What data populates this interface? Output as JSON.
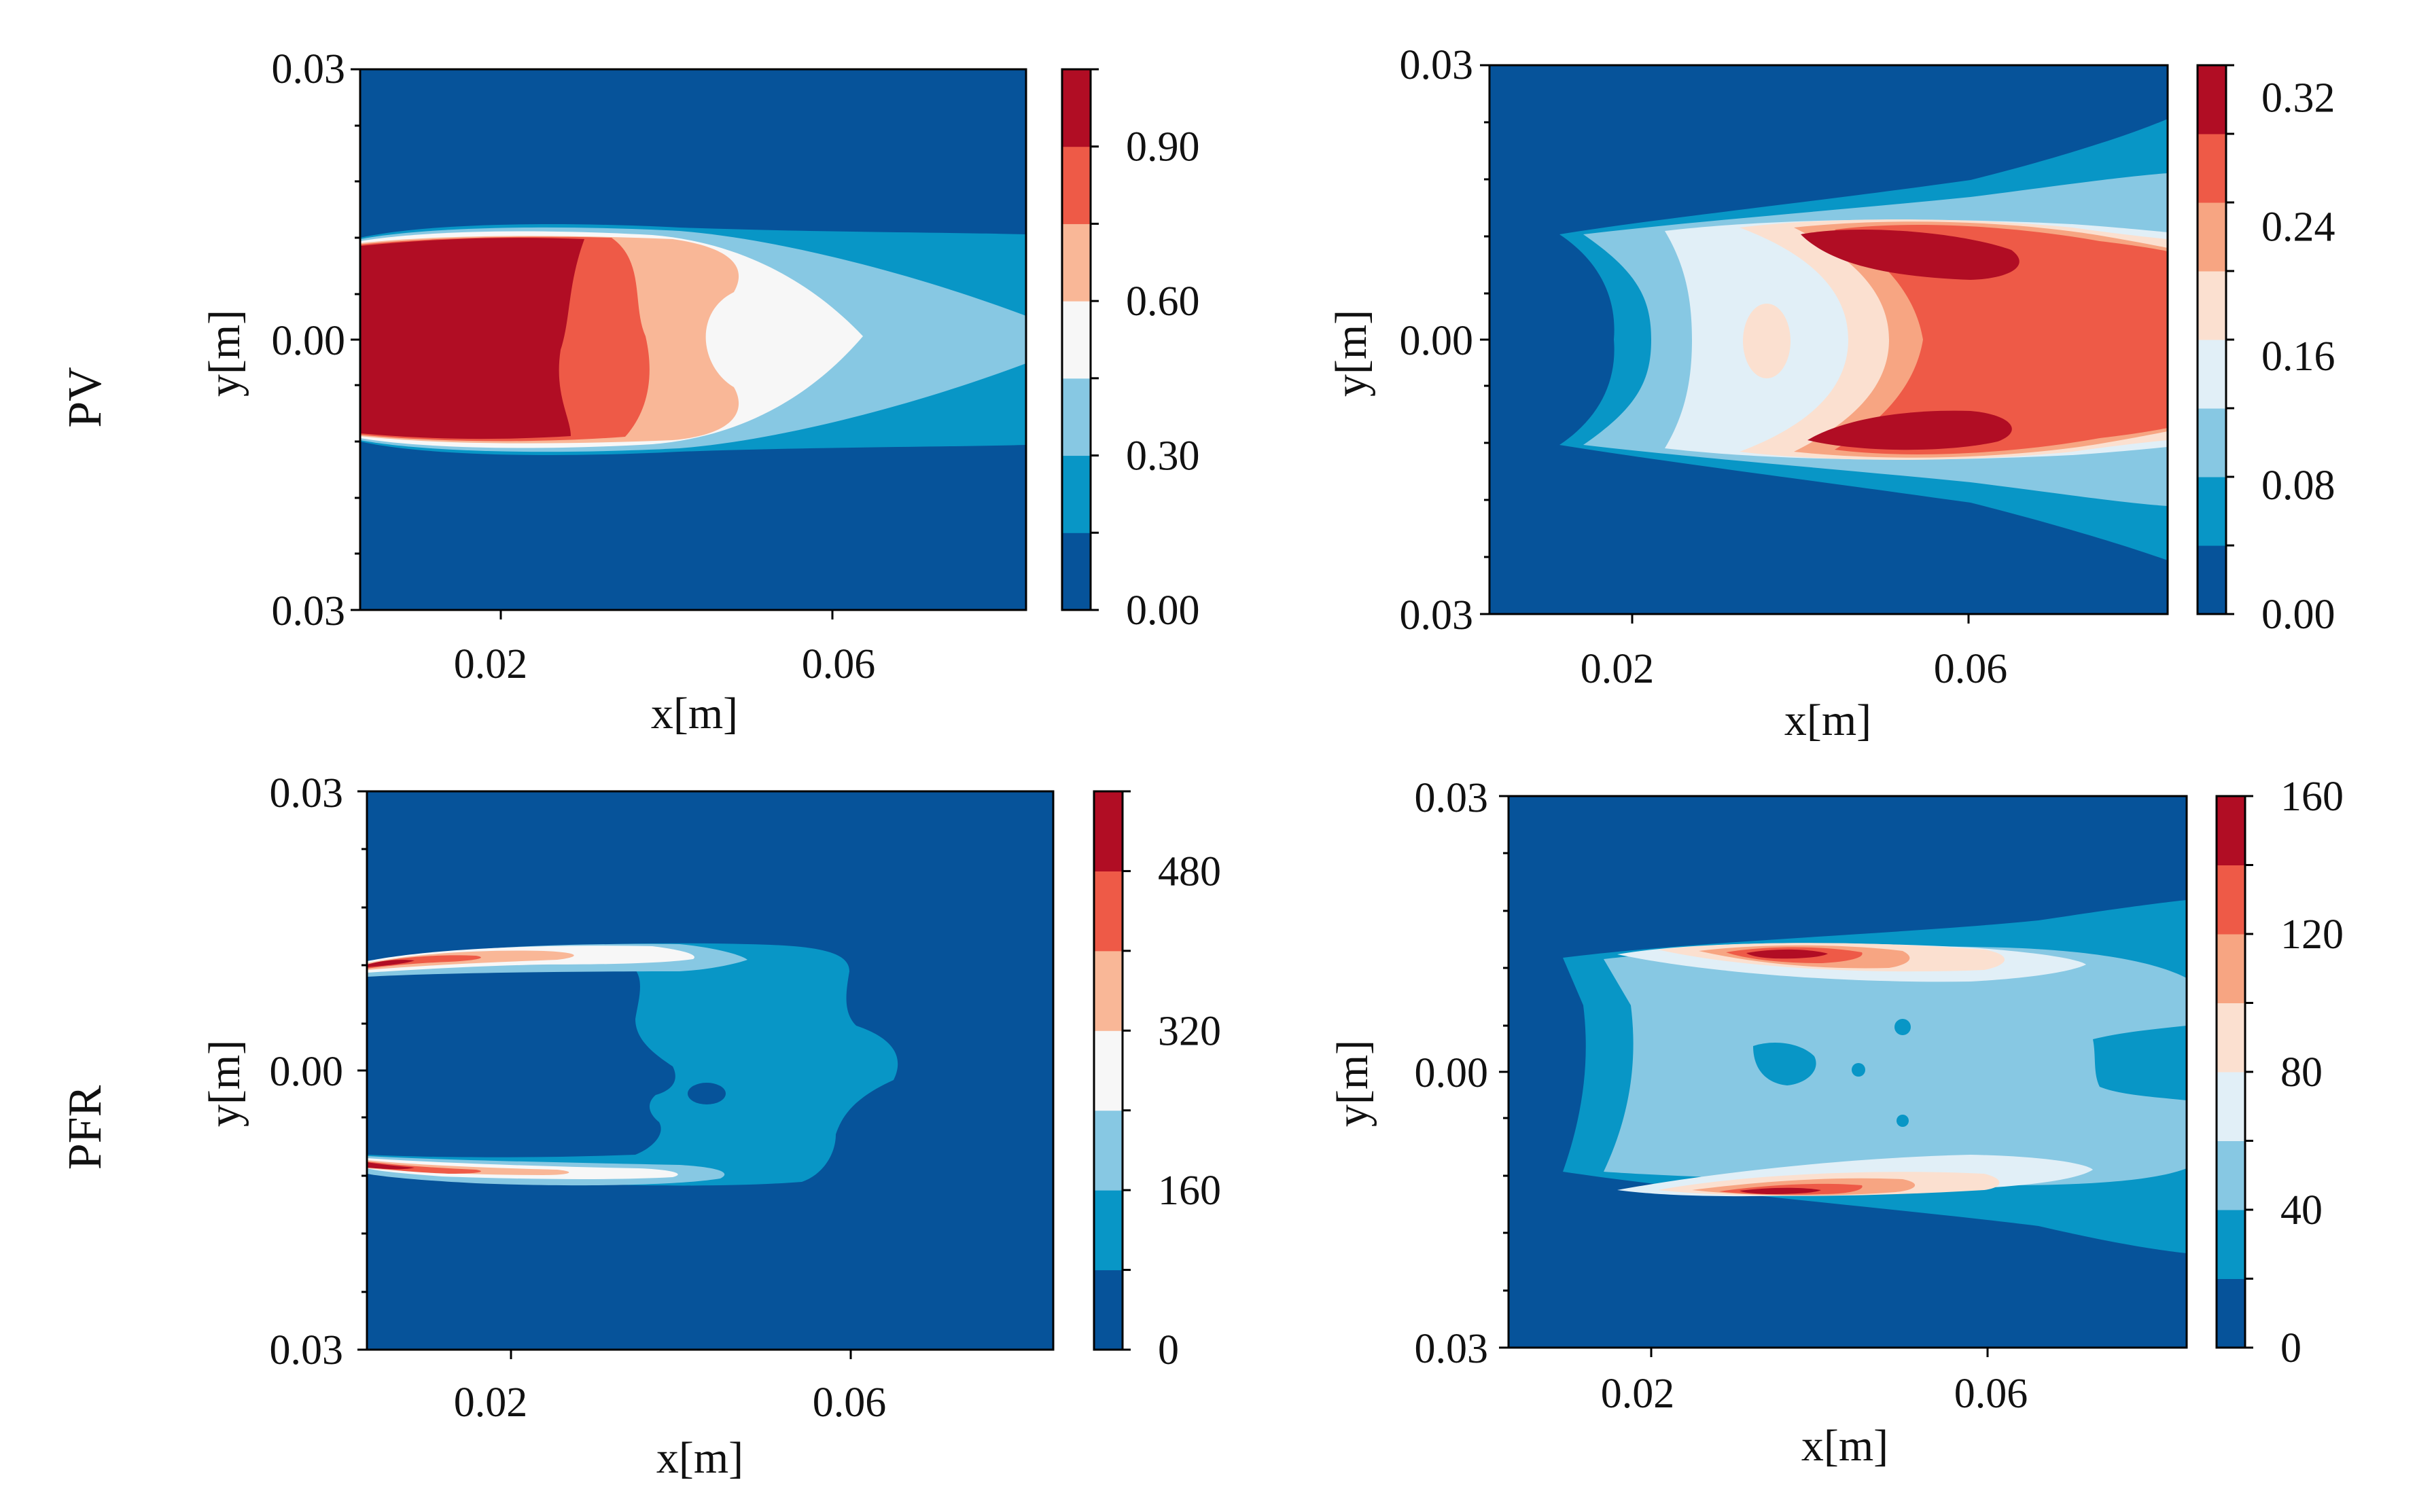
{
  "row_labels": [
    "PV",
    "PFR"
  ],
  "palette": [
    "#06539a",
    "#0896c6",
    "#87c8e3",
    "#f7f7f7",
    "#f9b797",
    "#ee5a47",
    "#b10d24"
  ],
  "chart_data": [
    {
      "type": "heatmap",
      "title": "",
      "row_label": "PV",
      "xlabel": "x[m]",
      "ylabel": "y[m]",
      "xticks": [
        "0.02",
        "0.06"
      ],
      "yticks": [
        "0.03",
        "0.00",
        "0.03"
      ],
      "xlim": [
        0.004,
        0.08
      ],
      "ylim": [
        -0.03,
        0.03
      ],
      "colorbar": {
        "vmin": 0,
        "vmax": 1.05,
        "bands": 7,
        "tick_values": [
          0,
          0.3,
          0.6,
          0.9
        ],
        "tick_labels": [
          "0.00",
          "0.30",
          "0.60",
          "0.90"
        ]
      }
    },
    {
      "type": "heatmap",
      "title": "",
      "xlabel": "x[m]",
      "ylabel": "y[m]",
      "xticks": [
        "0.02",
        "0.06"
      ],
      "yticks": [
        "0.03",
        "0.00",
        "0.03"
      ],
      "xlim": [
        0.004,
        0.08
      ],
      "ylim": [
        -0.03,
        0.03
      ],
      "colorbar": {
        "vmin": 0,
        "vmax": 0.34,
        "bands": 8,
        "tick_values": [
          0,
          0.08,
          0.16,
          0.24,
          0.32
        ],
        "tick_labels": [
          "0.00",
          "0.08",
          "0.16",
          "0.24",
          "0.32"
        ]
      }
    },
    {
      "type": "heatmap",
      "title": "",
      "row_label": "PFR",
      "xlabel": "x[m]",
      "ylabel": "y[m]",
      "xticks": [
        "0.02",
        "0.06"
      ],
      "yticks": [
        "0.03",
        "0.00",
        "0.03"
      ],
      "xlim": [
        0.004,
        0.08
      ],
      "ylim": [
        -0.03,
        0.03
      ],
      "colorbar": {
        "vmin": 0,
        "vmax": 560,
        "bands": 7,
        "tick_values": [
          0,
          160,
          320,
          480
        ],
        "tick_labels": [
          "0",
          "160",
          "320",
          "480"
        ]
      }
    },
    {
      "type": "heatmap",
      "title": "",
      "xlabel": "x[m]",
      "ylabel": "y[m]",
      "xticks": [
        "0.02",
        "0.06"
      ],
      "yticks": [
        "0.03",
        "0.00",
        "0.03"
      ],
      "xlim": [
        0.004,
        0.08
      ],
      "ylim": [
        -0.03,
        0.03
      ],
      "colorbar": {
        "vmin": 0,
        "vmax": 160,
        "bands": 8,
        "tick_values": [
          0,
          40,
          80,
          120,
          160
        ],
        "tick_labels": [
          "0",
          "40",
          "80",
          "120",
          "160"
        ]
      }
    }
  ]
}
